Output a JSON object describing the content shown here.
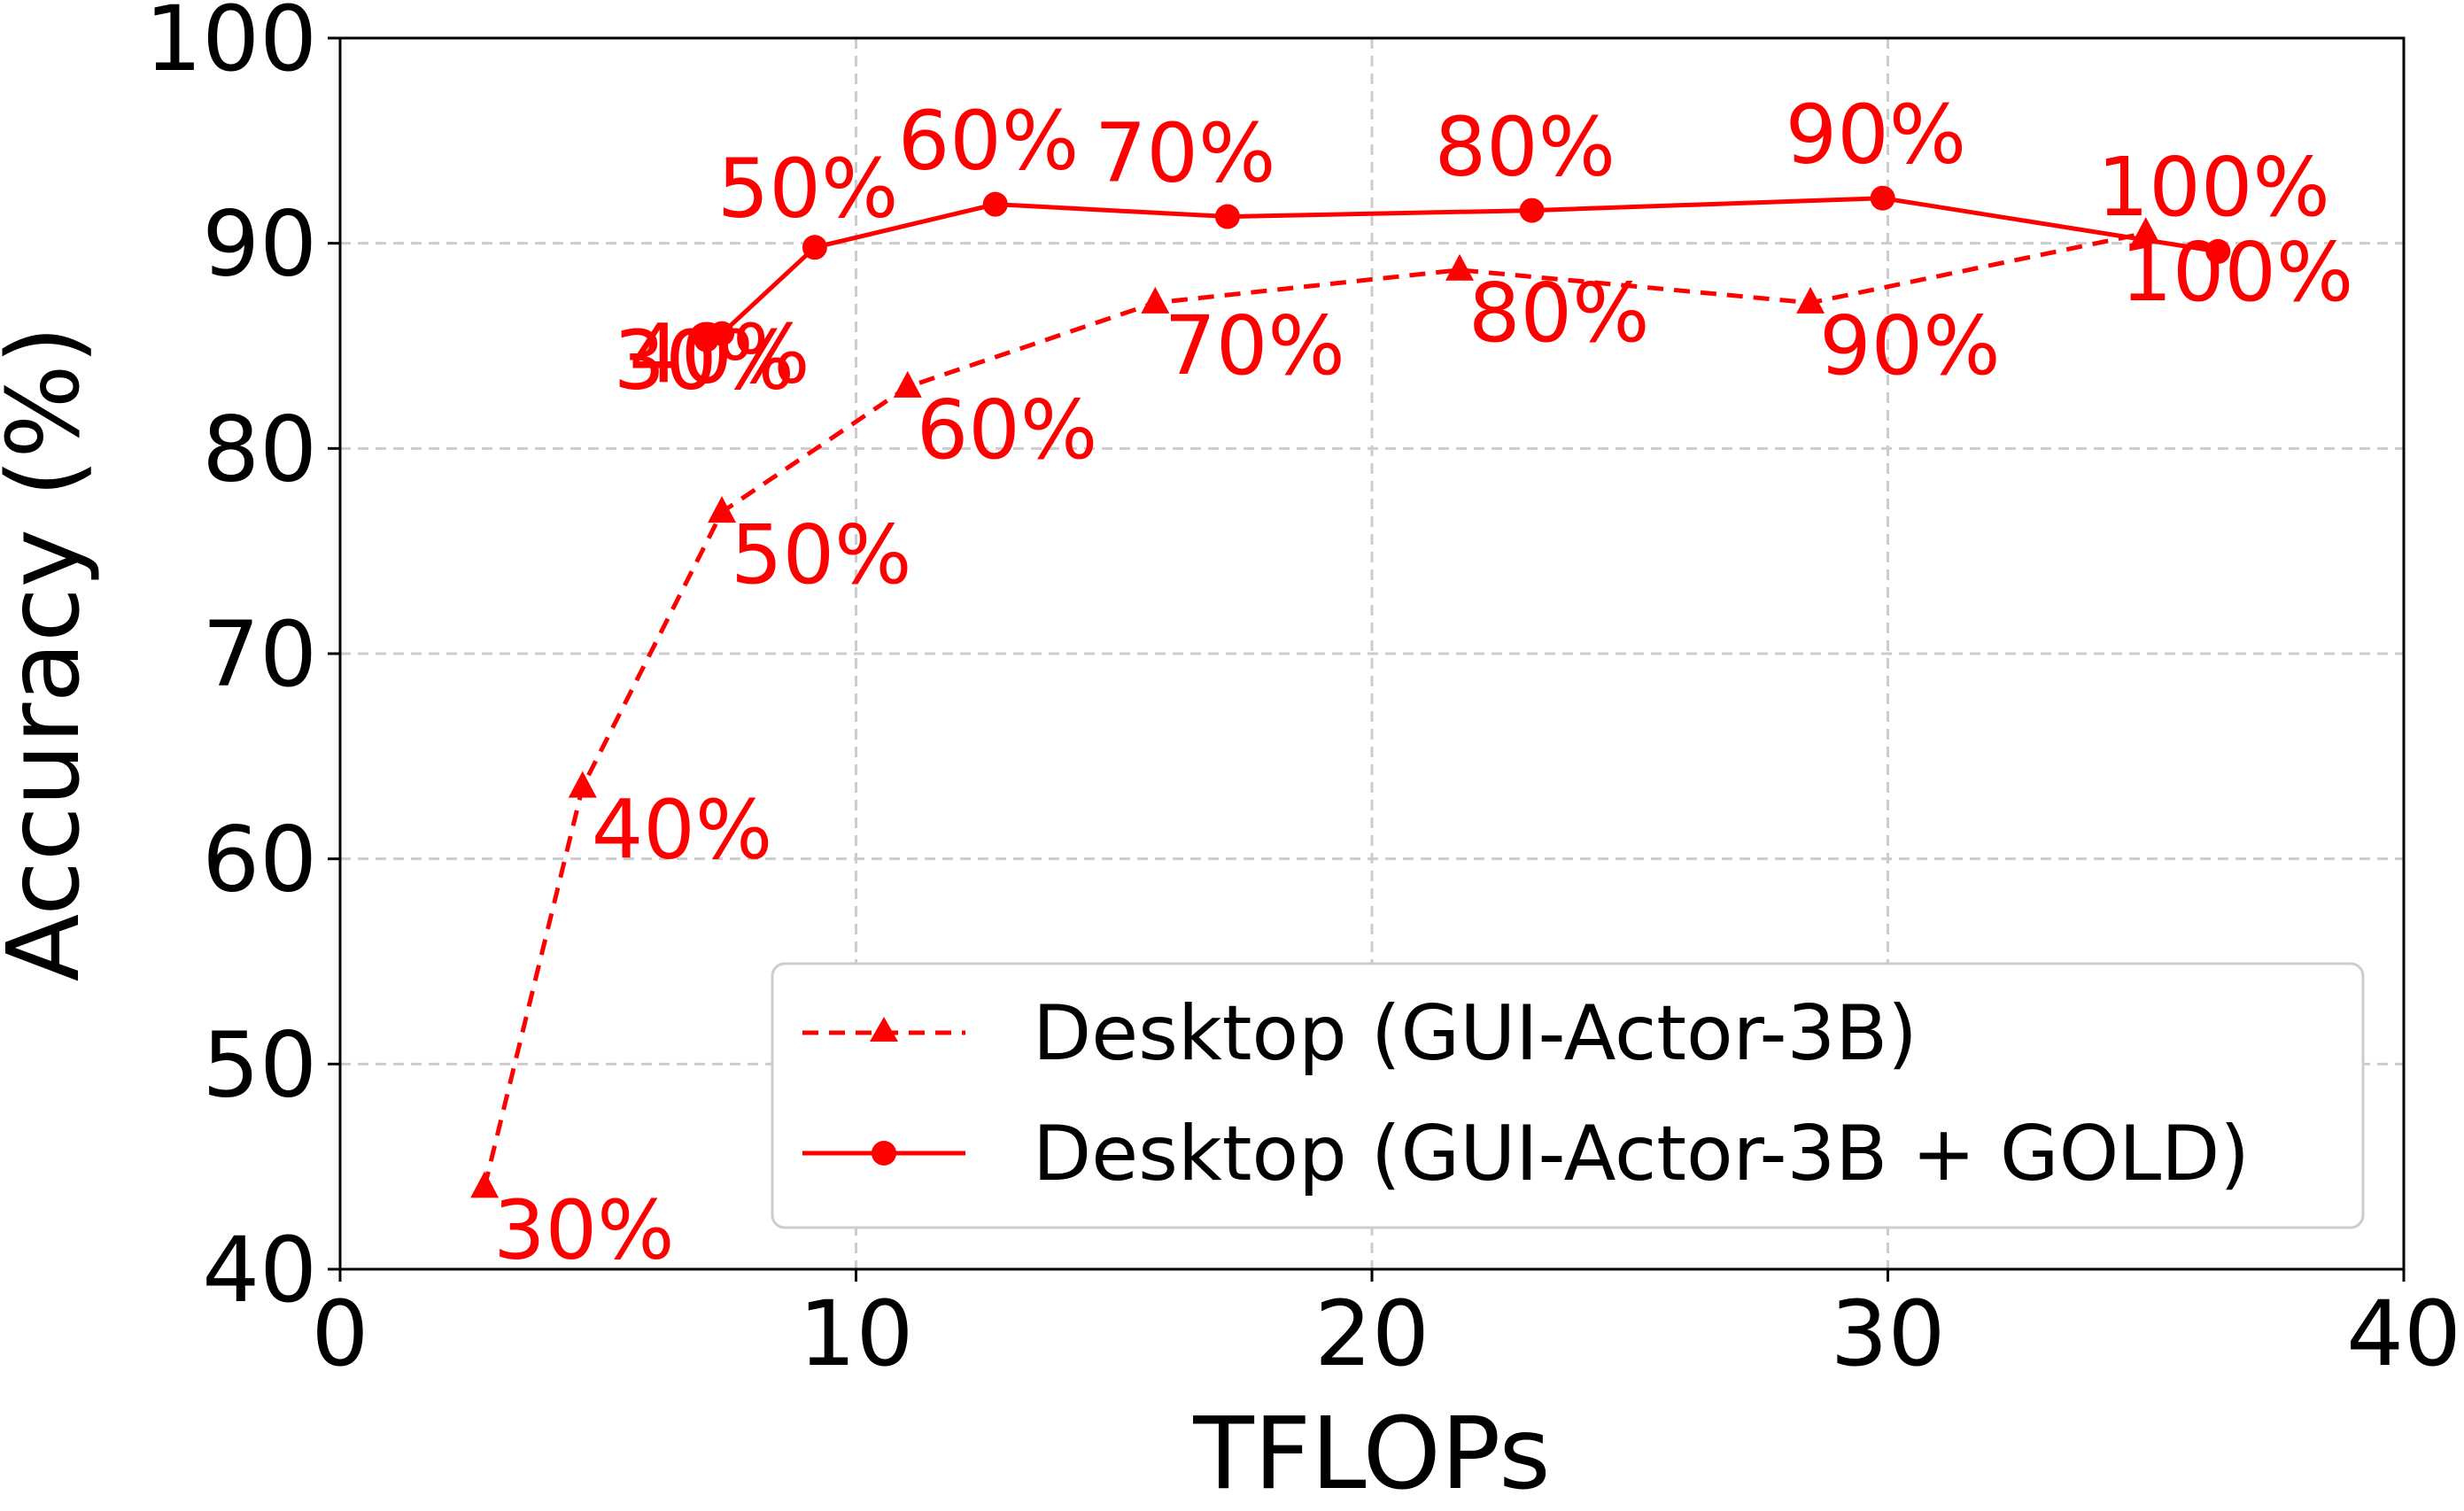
{
  "chart_data": {
    "type": "line",
    "title": "",
    "xlabel": "TFLOPs",
    "ylabel": "Accuracy (%)",
    "xlim": [
      0,
      40
    ],
    "ylim": [
      40,
      100
    ],
    "xticks": [
      "0",
      "10",
      "20",
      "30",
      "40"
    ],
    "yticks": [
      "40",
      "50",
      "60",
      "70",
      "80",
      "90",
      "100"
    ],
    "grid": true,
    "legend_position": "lower-right",
    "series": [
      {
        "name": "Desktop (GUI-Actor-3B)",
        "color": "#ff0000",
        "linestyle": "dashed",
        "marker": "triangle",
        "x": [
          2.8,
          4.7,
          7.4,
          11.0,
          15.8,
          21.7,
          28.5,
          35.0
        ],
        "y": [
          44.0,
          63.5,
          76.9,
          83.0,
          87.1,
          88.7,
          87.1,
          90.5
        ],
        "labels": [
          "30%",
          "40%",
          "50%",
          "60%",
          "70%",
          "80%",
          "90%",
          "100%"
        ]
      },
      {
        "name": "Desktop (GUI-Actor-3B + GOLD)",
        "color": "#ff0000",
        "linestyle": "solid",
        "marker": "circle",
        "x": [
          7.1,
          7.4,
          9.2,
          12.7,
          17.2,
          23.1,
          29.9,
          36.4
        ],
        "y": [
          85.3,
          85.6,
          89.8,
          91.9,
          91.3,
          91.6,
          92.2,
          89.6
        ],
        "labels": [
          "30%",
          "40%",
          "50%",
          "60%",
          "70%",
          "80%",
          "90%",
          "100%"
        ]
      }
    ]
  }
}
